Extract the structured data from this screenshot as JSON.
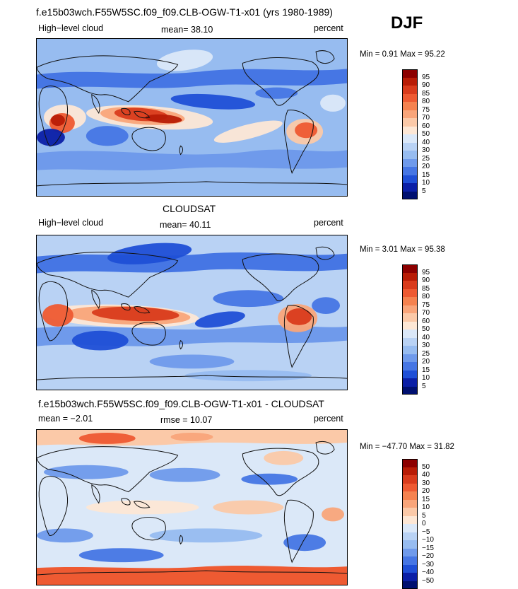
{
  "season": "DJF",
  "panels": [
    {
      "id": "model",
      "title": "f.e15b03wch.F55W5SC.f09_f09.CLB-OGW-T1-x01 (yrs 1980-1989)",
      "left_label": "High−level cloud",
      "center_label": "mean=  38.10",
      "units": "percent",
      "minmax": "Min =    0.91  Max =   95.22",
      "colorbar": {
        "labels": [
          "95",
          "90",
          "85",
          "80",
          "75",
          "70",
          "60",
          "50",
          "40",
          "30",
          "25",
          "20",
          "15",
          "10",
          "5"
        ],
        "colors": [
          "#8c0000",
          "#b81c06",
          "#d93b1c",
          "#ee5a32",
          "#f5824f",
          "#f9a57a",
          "#fbc9a8",
          "#fde7d5",
          "#dbe8f8",
          "#b9d2f4",
          "#97bcf0",
          "#6f9aeb",
          "#4676e4",
          "#1f4fd6",
          "#0b1fa6",
          "#001070"
        ]
      }
    },
    {
      "id": "obs",
      "title": "CLOUDSAT",
      "left_label": "High−level cloud",
      "center_label": "mean=  40.11",
      "units": "percent",
      "minmax": "Min =    3.01  Max =   95.38",
      "colorbar": {
        "labels": [
          "95",
          "90",
          "85",
          "80",
          "75",
          "70",
          "60",
          "50",
          "40",
          "30",
          "25",
          "20",
          "15",
          "10",
          "5"
        ],
        "colors": [
          "#8c0000",
          "#b81c06",
          "#d93b1c",
          "#ee5a32",
          "#f5824f",
          "#f9a57a",
          "#fbc9a8",
          "#fde7d5",
          "#dbe8f8",
          "#b9d2f4",
          "#97bcf0",
          "#6f9aeb",
          "#4676e4",
          "#1f4fd6",
          "#0b1fa6",
          "#001070"
        ]
      }
    },
    {
      "id": "diff",
      "title": "f.e15b03wch.F55W5SC.f09_f09.CLB-OGW-T1-x01 - CLOUDSAT",
      "left_label": "mean =  −2.01",
      "center_label": "rmse =  10.07",
      "units": "percent",
      "minmax": "Min = −47.70  Max =   31.82",
      "colorbar": {
        "labels": [
          "50",
          "40",
          "30",
          "20",
          "15",
          "10",
          "5",
          "0",
          "−5",
          "−10",
          "−15",
          "−20",
          "−30",
          "−40",
          "−50"
        ],
        "colors": [
          "#8c0000",
          "#b81c06",
          "#d93b1c",
          "#ee5a32",
          "#f5824f",
          "#f9a57a",
          "#fbc9a8",
          "#fde7d5",
          "#dbe8f8",
          "#b9d2f4",
          "#97bcf0",
          "#6f9aeb",
          "#4676e4",
          "#1f4fd6",
          "#0b1fa6",
          "#001070"
        ]
      }
    }
  ]
}
